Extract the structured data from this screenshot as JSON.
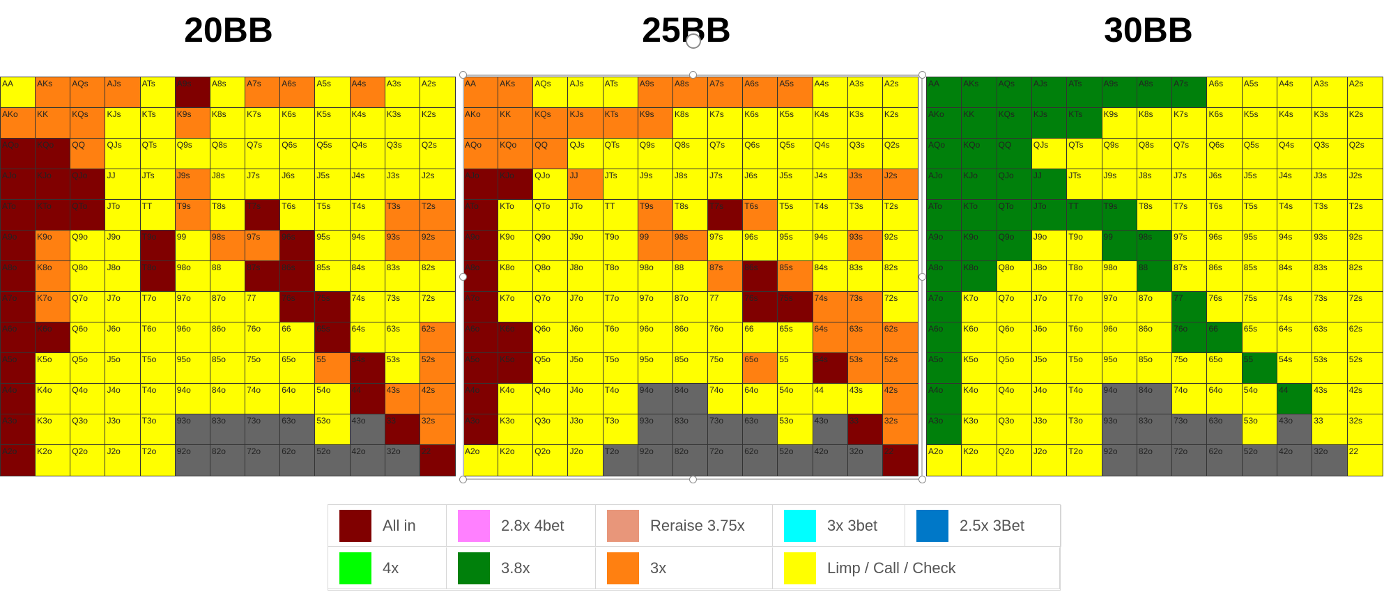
{
  "chart_data": [
    {
      "type": "heatmap",
      "title": "20BB",
      "key": "t20"
    },
    {
      "type": "heatmap",
      "title": "25BB",
      "key": "t25"
    },
    {
      "type": "heatmap",
      "title": "30BB",
      "key": "t30"
    }
  ],
  "ranks": [
    "A",
    "K",
    "Q",
    "J",
    "T",
    "9",
    "8",
    "7",
    "6",
    "5",
    "4",
    "3",
    "2"
  ],
  "colors": {
    "allin": "#800000",
    "raise3": "#ff8011",
    "call": "#ffff00",
    "fold": "#666666",
    "r38": "#00800b"
  },
  "overrides": {
    "t20": {
      "AKs": "raise3",
      "AQs": "raise3",
      "AJs": "raise3",
      "AKo": "raise3",
      "KK": "raise3",
      "KQs": "raise3",
      "A9s": "allin",
      "A7s": "raise3",
      "A6s": "raise3",
      "A4s": "raise3",
      "K9s": "raise3",
      "AQo": "allin",
      "KQo": "allin",
      "QQ": "raise3",
      "AJo": "allin",
      "KJo": "allin",
      "QJo": "allin",
      "ATo": "allin",
      "KTo": "allin",
      "QTo": "allin",
      "A9o": "allin",
      "A8o": "allin",
      "A7o": "allin",
      "A6o": "allin",
      "A5o": "allin",
      "A4o": "allin",
      "A3o": "allin",
      "A2o": "allin",
      "K6o": "allin",
      "K8o": "raise3",
      "K7o": "raise3",
      "K9o": "raise3",
      "T7s": "allin",
      "87s": "allin",
      "86s": "allin",
      "96s": "allin",
      "76s": "allin",
      "75s": "allin",
      "65s": "allin",
      "54s": "allin",
      "44": "allin",
      "33": "allin",
      "22": "allin",
      "T8o": "allin",
      "T9o": "allin",
      "65s_": "allin",
      "T9s": "raise3",
      "98s": "raise3",
      "97s": "raise3",
      "J9s": "raise3",
      "T3s": "raise3",
      "T2s": "raise3",
      "92s": "raise3",
      "93s": "raise3",
      "62s": "raise3",
      "52s": "raise3",
      "43s": "raise3",
      "42s": "raise3",
      "32s": "raise3",
      "55": "raise3",
      "53o": "call",
      "93o": "fold",
      "83o": "fold",
      "73o": "fold",
      "63o": "fold",
      "43o": "fold",
      "92o": "fold",
      "82o": "fold",
      "72o": "fold",
      "62o": "fold",
      "52o": "fold",
      "42o": "fold",
      "32o": "fold"
    },
    "t25": {
      "AA": "raise3",
      "AKs": "raise3",
      "A9s": "raise3",
      "A8s": "raise3",
      "A7s": "raise3",
      "A6s": "raise3",
      "A5s": "raise3",
      "AKo": "raise3",
      "KK": "raise3",
      "KQs": "raise3",
      "KJs": "raise3",
      "KTs": "raise3",
      "K9s": "raise3",
      "AQo": "raise3",
      "KQo": "raise3",
      "QQ": "raise3",
      "AJo": "allin",
      "KJo": "allin",
      "JJ": "raise3",
      "ATo": "allin",
      "T9s": "raise3",
      "T7s": "allin",
      "T6s": "raise3",
      "A9o": "allin",
      "99": "raise3",
      "98s": "raise3",
      "A8o": "allin",
      "87s": "raise3",
      "86s": "allin",
      "85s": "raise3",
      "A7o": "allin",
      "76s": "allin",
      "74s": "raise3",
      "A6o": "allin",
      "K6o": "allin",
      "75s": "allin",
      "64s": "raise3",
      "A5o": "allin",
      "K5o": "allin",
      "65o": "raise3",
      "54s": "allin",
      "A4o": "allin",
      "43s": "call",
      "A3o": "allin",
      "33": "allin",
      "22": "allin",
      "32s": "raise3",
      "42s": "raise3",
      "52s": "raise3",
      "62s": "raise3",
      "53s": "raise3",
      "63s": "raise3",
      "73s": "raise3",
      "93s": "raise3",
      "J2s": "raise3",
      "J3s": "raise3",
      "94o": "fold",
      "84o": "fold",
      "93o": "fold",
      "83o": "fold",
      "73o": "fold",
      "63o": "fold",
      "43o": "fold",
      "92o": "fold",
      "82o": "fold",
      "72o": "fold",
      "62o": "fold",
      "52o": "fold",
      "42o": "fold",
      "32o": "fold",
      "T2o": "fold"
    },
    "t30": {
      "AA": "r38",
      "AKs": "r38",
      "AQs": "r38",
      "AJs": "r38",
      "ATs": "r38",
      "A9s": "r38",
      "A8s": "r38",
      "A7s": "r38",
      "AKo": "r38",
      "KK": "r38",
      "KQs": "r38",
      "KJs": "r38",
      "KTs": "r38",
      "AQo": "r38",
      "KQo": "r38",
      "QQ": "r38",
      "AJo": "r38",
      "KJo": "r38",
      "QJo": "r38",
      "JJ": "r38",
      "ATo": "r38",
      "KTo": "r38",
      "QTo": "r38",
      "JTo": "r38",
      "TT": "r38",
      "T9s": "r38",
      "A9o": "r38",
      "K9o": "r38",
      "Q9o": "r38",
      "99": "r38",
      "98s": "r38",
      "A8o": "r38",
      "K8o": "r38",
      "88": "r38",
      "A7o": "r38",
      "77": "r38",
      "A6o": "r38",
      "76o": "r38",
      "66": "r38",
      "A5o": "r38",
      "55": "r38",
      "A4o": "r38",
      "44": "r38",
      "A3o": "r38",
      "33": "call",
      "22": "call",
      "94o": "fold",
      "84o": "fold",
      "93o": "fold",
      "83o": "fold",
      "73o": "fold",
      "63o": "fold",
      "43o": "fold",
      "92o": "fold",
      "82o": "fold",
      "72o": "fold",
      "62o": "fold",
      "52o": "fold",
      "42o": "fold",
      "32o": "fold"
    }
  },
  "legend": [
    {
      "label": "All in",
      "color": "#800000"
    },
    {
      "label": "2.8x 4bet",
      "color": "#ff80ff"
    },
    {
      "label": "Reraise 3.75x",
      "color": "#e8967a"
    },
    {
      "label": "3x 3bet",
      "color": "#00ffff"
    },
    {
      "label": "2.5x 3Bet",
      "color": "#0078c8"
    },
    {
      "label": "4x",
      "color": "#00ff00"
    },
    {
      "label": "3.8x",
      "color": "#00800b"
    },
    {
      "label": "3x",
      "color": "#ff8011"
    },
    {
      "label": "Limp / Call / Check",
      "color": "#ffff00"
    }
  ]
}
